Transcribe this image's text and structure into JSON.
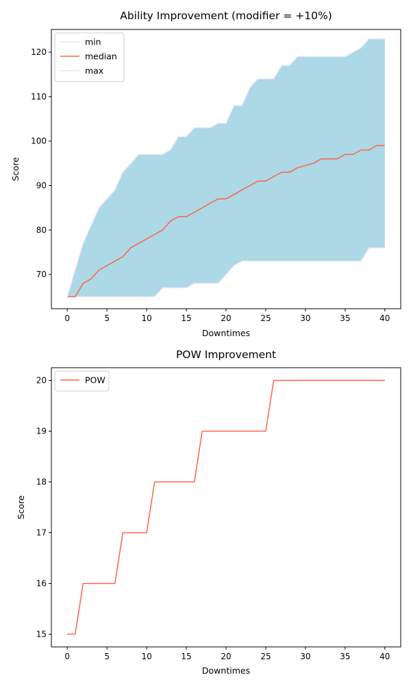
{
  "chart_data": [
    {
      "type": "line",
      "title": "Ability Improvement (modifier = +10%)",
      "xlabel": "Downtimes",
      "ylabel": "Score",
      "xlim": [
        -2,
        42
      ],
      "ylim": [
        62.3,
        125.1
      ],
      "xticks": [
        0,
        5,
        10,
        15,
        20,
        25,
        30,
        35,
        40
      ],
      "yticks": [
        70,
        80,
        90,
        100,
        110,
        120
      ],
      "legend": "top-left",
      "fill_between": {
        "lower": "min",
        "upper": "max",
        "color": "#add8e6"
      },
      "x": [
        0,
        1,
        2,
        3,
        4,
        5,
        6,
        7,
        8,
        9,
        10,
        11,
        12,
        13,
        14,
        15,
        16,
        17,
        18,
        19,
        20,
        21,
        22,
        23,
        24,
        25,
        26,
        27,
        28,
        29,
        30,
        31,
        32,
        33,
        34,
        35,
        36,
        37,
        38,
        39,
        40
      ],
      "series": [
        {
          "name": "min",
          "color": "#e6e6fa",
          "values": [
            65,
            65,
            65,
            65,
            65,
            65,
            65,
            65,
            65,
            65,
            65,
            65,
            67,
            67,
            67,
            67,
            68,
            68,
            68,
            68,
            70,
            72,
            73,
            73,
            73,
            73,
            73,
            73,
            73,
            73,
            73,
            73,
            73,
            73,
            73,
            73,
            73,
            73,
            76,
            76,
            76
          ]
        },
        {
          "name": "median",
          "color": "#ff6347",
          "values": [
            65,
            65,
            68,
            69,
            71,
            72,
            73,
            74,
            76,
            77,
            78,
            79,
            80,
            82,
            83,
            83,
            84,
            85,
            86,
            87,
            87,
            88,
            89,
            90,
            91,
            91,
            92,
            93,
            93,
            94,
            94.5,
            95,
            96,
            96,
            96,
            97,
            97,
            98,
            98,
            99,
            99
          ]
        },
        {
          "name": "max",
          "color": "#e6e6fa",
          "values": [
            65,
            71,
            77,
            81,
            85,
            87,
            89,
            93,
            95,
            97,
            97,
            97,
            97,
            98,
            101,
            101,
            103,
            103,
            103,
            104,
            104,
            108,
            108,
            112,
            114,
            114,
            114,
            117,
            117,
            119,
            119,
            119,
            119,
            119,
            119,
            119,
            120,
            121,
            123,
            123,
            123
          ]
        }
      ]
    },
    {
      "type": "line",
      "title": "POW Improvement",
      "xlabel": "Downtimes",
      "ylabel": "Score",
      "xlim": [
        -2,
        42
      ],
      "ylim": [
        14.75,
        20.25
      ],
      "xticks": [
        0,
        5,
        10,
        15,
        20,
        25,
        30,
        35,
        40
      ],
      "yticks": [
        15,
        16,
        17,
        18,
        19,
        20
      ],
      "legend": "top-left",
      "x": [
        0,
        1,
        2,
        3,
        4,
        5,
        6,
        7,
        8,
        9,
        10,
        11,
        12,
        13,
        14,
        15,
        16,
        17,
        18,
        19,
        20,
        21,
        22,
        23,
        24,
        25,
        26,
        27,
        28,
        29,
        30,
        31,
        32,
        33,
        34,
        35,
        36,
        37,
        38,
        39,
        40
      ],
      "series": [
        {
          "name": "POW",
          "color": "#ff6347",
          "values": [
            15,
            15,
            16,
            16,
            16,
            16,
            16,
            17,
            17,
            17,
            17,
            18,
            18,
            18,
            18,
            18,
            18,
            19,
            19,
            19,
            19,
            19,
            19,
            19,
            19,
            19,
            20,
            20,
            20,
            20,
            20,
            20,
            20,
            20,
            20,
            20,
            20,
            20,
            20,
            20,
            20
          ]
        }
      ]
    }
  ]
}
